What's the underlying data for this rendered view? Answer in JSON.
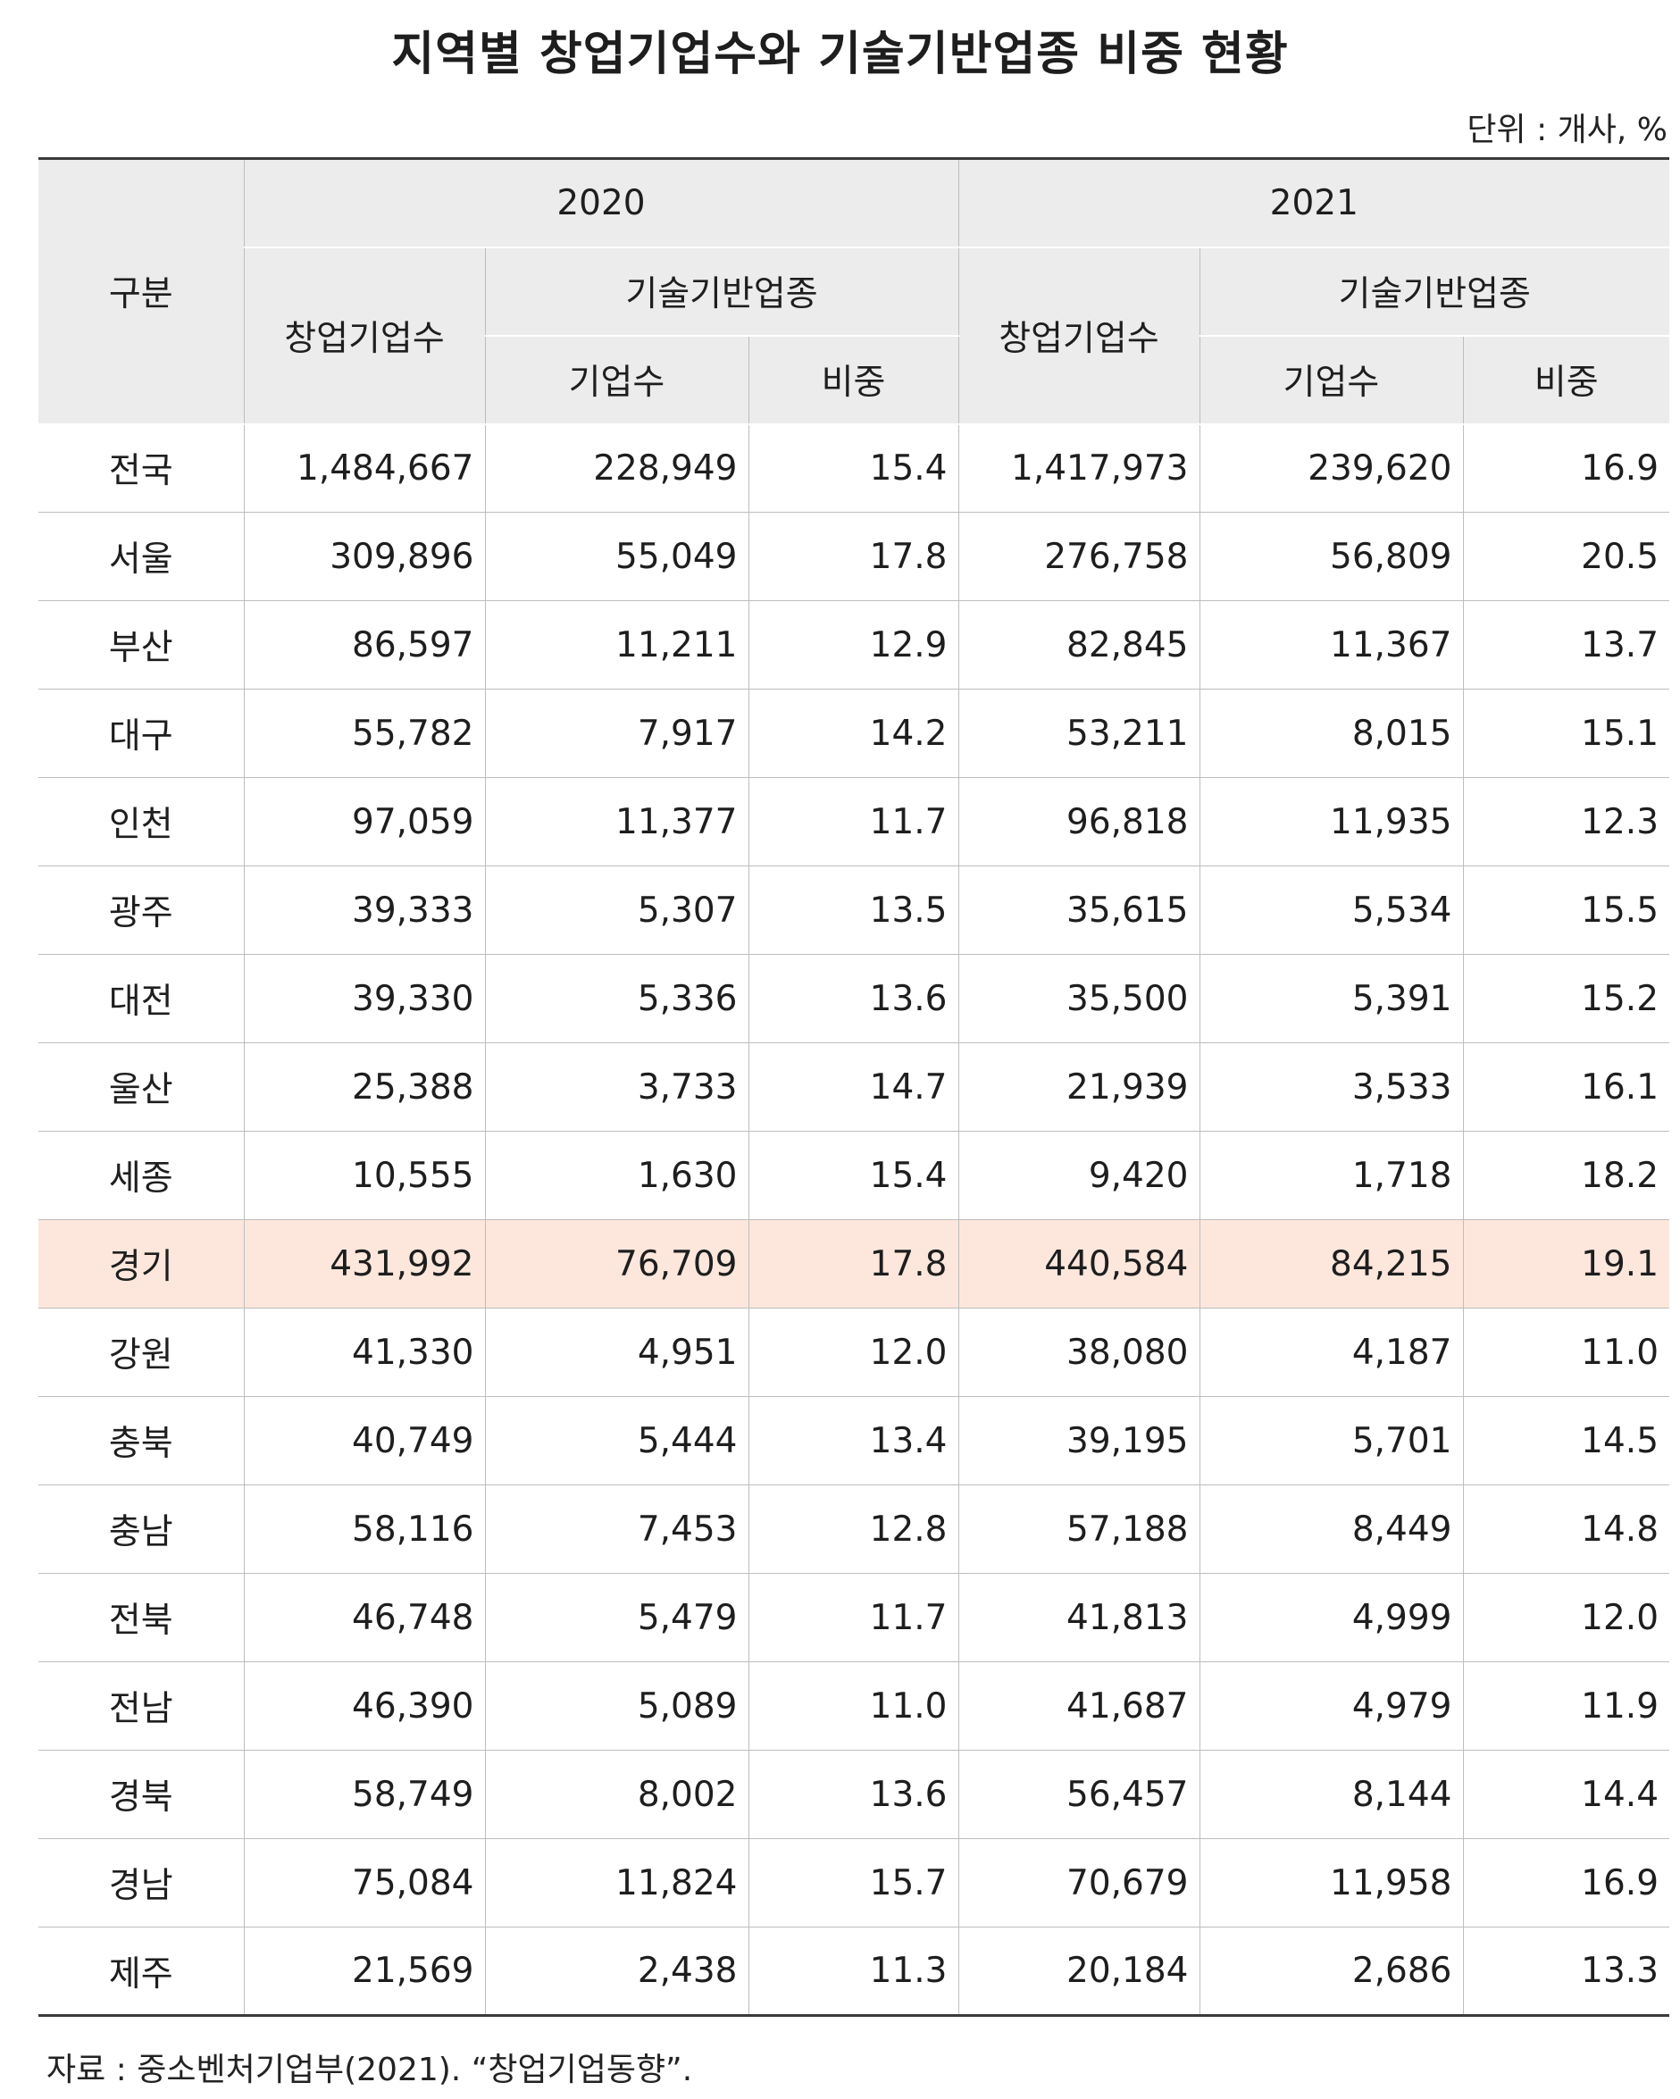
{
  "title": "지역별 창업기업수와 기술기반업종 비중 현황",
  "unit": "단위 : 개사, %",
  "headers": {
    "category": "구분",
    "year_2020": "2020",
    "year_2021": "2021",
    "startups": "창업기업수",
    "tech_sector": "기술기반업종",
    "companies": "기업수",
    "share": "비중"
  },
  "rows": [
    {
      "region": "전국",
      "s2020": "1,484,667",
      "t2020": "228,949",
      "p2020": "15.4",
      "s2021": "1,417,973",
      "t2021": "239,620",
      "p2021": "16.9"
    },
    {
      "region": "서울",
      "s2020": "309,896",
      "t2020": "55,049",
      "p2020": "17.8",
      "s2021": "276,758",
      "t2021": "56,809",
      "p2021": "20.5"
    },
    {
      "region": "부산",
      "s2020": "86,597",
      "t2020": "11,211",
      "p2020": "12.9",
      "s2021": "82,845",
      "t2021": "11,367",
      "p2021": "13.7"
    },
    {
      "region": "대구",
      "s2020": "55,782",
      "t2020": "7,917",
      "p2020": "14.2",
      "s2021": "53,211",
      "t2021": "8,015",
      "p2021": "15.1"
    },
    {
      "region": "인천",
      "s2020": "97,059",
      "t2020": "11,377",
      "p2020": "11.7",
      "s2021": "96,818",
      "t2021": "11,935",
      "p2021": "12.3"
    },
    {
      "region": "광주",
      "s2020": "39,333",
      "t2020": "5,307",
      "p2020": "13.5",
      "s2021": "35,615",
      "t2021": "5,534",
      "p2021": "15.5"
    },
    {
      "region": "대전",
      "s2020": "39,330",
      "t2020": "5,336",
      "p2020": "13.6",
      "s2021": "35,500",
      "t2021": "5,391",
      "p2021": "15.2"
    },
    {
      "region": "울산",
      "s2020": "25,388",
      "t2020": "3,733",
      "p2020": "14.7",
      "s2021": "21,939",
      "t2021": "3,533",
      "p2021": "16.1"
    },
    {
      "region": "세종",
      "s2020": "10,555",
      "t2020": "1,630",
      "p2020": "15.4",
      "s2021": "9,420",
      "t2021": "1,718",
      "p2021": "18.2"
    },
    {
      "region": "경기",
      "s2020": "431,992",
      "t2020": "76,709",
      "p2020": "17.8",
      "s2021": "440,584",
      "t2021": "84,215",
      "p2021": "19.1",
      "highlight": true
    },
    {
      "region": "강원",
      "s2020": "41,330",
      "t2020": "4,951",
      "p2020": "12.0",
      "s2021": "38,080",
      "t2021": "4,187",
      "p2021": "11.0"
    },
    {
      "region": "충북",
      "s2020": "40,749",
      "t2020": "5,444",
      "p2020": "13.4",
      "s2021": "39,195",
      "t2021": "5,701",
      "p2021": "14.5"
    },
    {
      "region": "충남",
      "s2020": "58,116",
      "t2020": "7,453",
      "p2020": "12.8",
      "s2021": "57,188",
      "t2021": "8,449",
      "p2021": "14.8"
    },
    {
      "region": "전북",
      "s2020": "46,748",
      "t2020": "5,479",
      "p2020": "11.7",
      "s2021": "41,813",
      "t2021": "4,999",
      "p2021": "12.0"
    },
    {
      "region": "전남",
      "s2020": "46,390",
      "t2020": "5,089",
      "p2020": "11.0",
      "s2021": "41,687",
      "t2021": "4,979",
      "p2021": "11.9"
    },
    {
      "region": "경북",
      "s2020": "58,749",
      "t2020": "8,002",
      "p2020": "13.6",
      "s2021": "56,457",
      "t2021": "8,144",
      "p2021": "14.4"
    },
    {
      "region": "경남",
      "s2020": "75,084",
      "t2020": "11,824",
      "p2020": "15.7",
      "s2021": "70,679",
      "t2021": "11,958",
      "p2021": "16.9"
    },
    {
      "region": "제주",
      "s2020": "21,569",
      "t2020": "2,438",
      "p2020": "11.3",
      "s2021": "20,184",
      "t2021": "2,686",
      "p2021": "13.3"
    }
  ],
  "source": "자료 : 중소벤처기업부(2021). “창업기업동향”."
}
